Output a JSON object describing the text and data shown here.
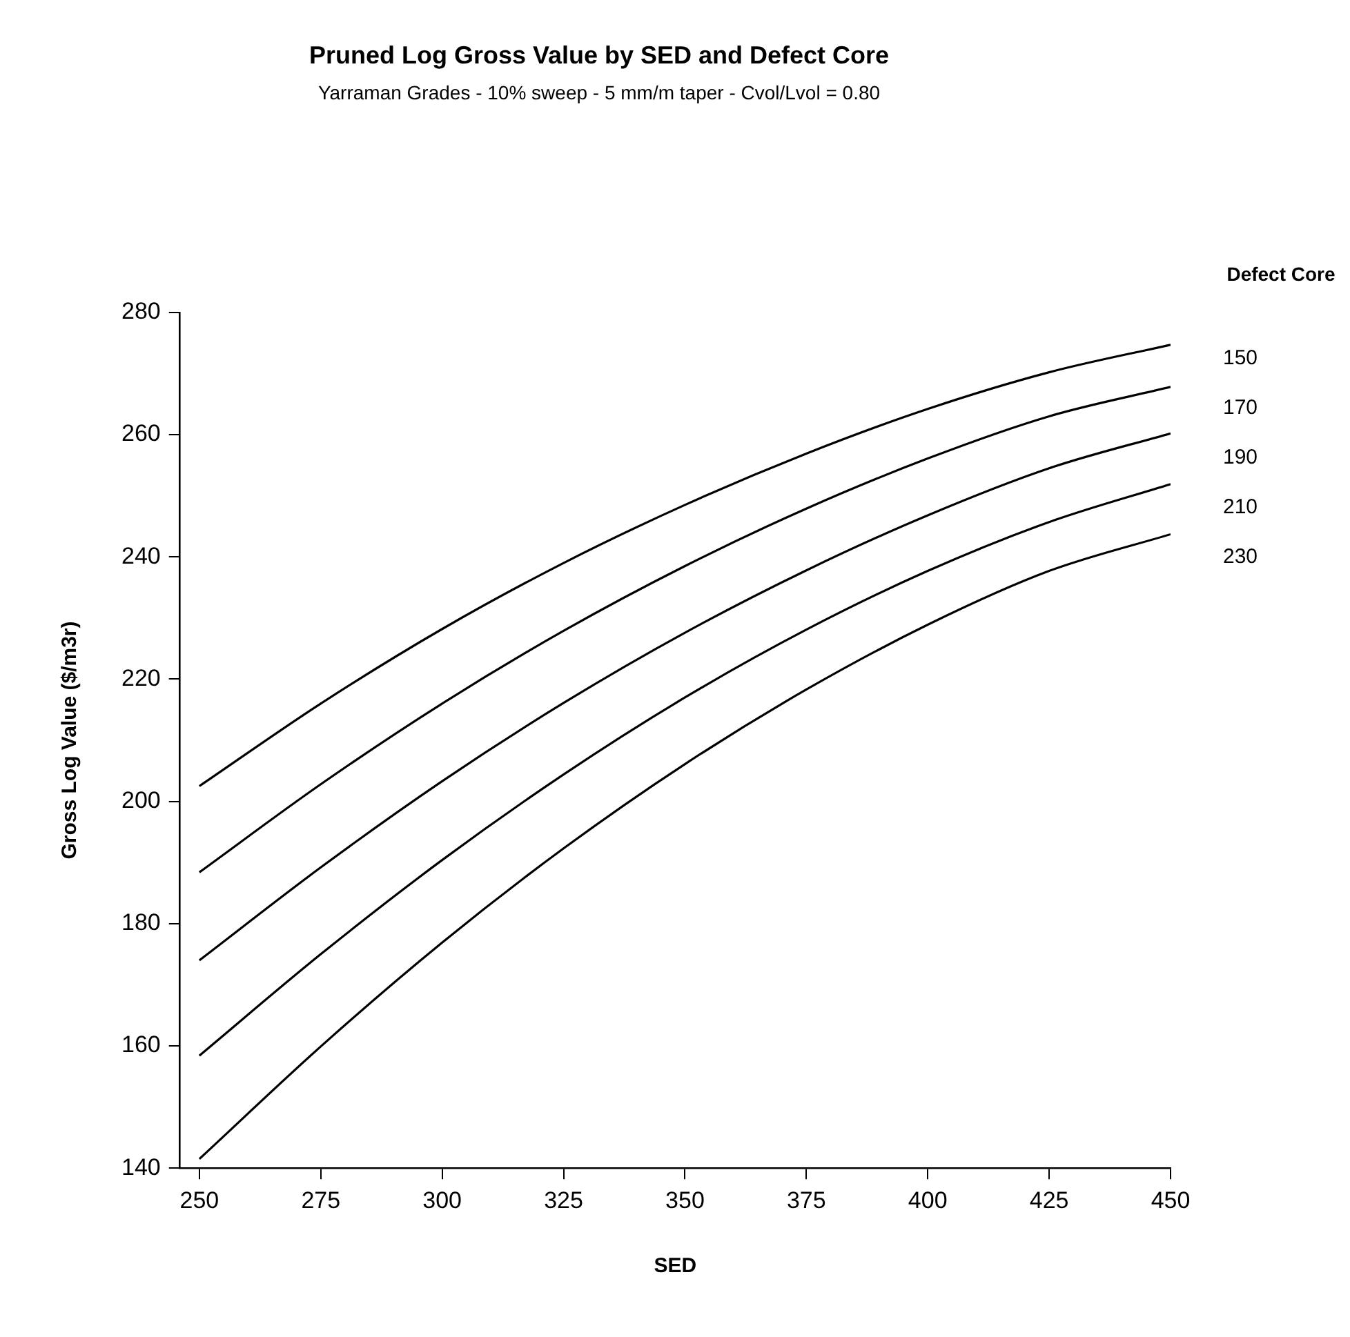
{
  "chart_data": {
    "type": "line",
    "title": "Pruned Log Gross Value by SED and Defect Core",
    "subtitle": "Yarraman Grades - 10% sweep - 5 mm/m taper - Cvol/Lvol = 0.80",
    "xlabel": "SED",
    "ylabel": "Gross Log Value ($/m3r)",
    "legend_title": "Defect Core",
    "x": [
      250,
      275,
      300,
      325,
      350,
      375,
      400,
      425,
      450
    ],
    "series": [
      {
        "name": "150",
        "color": "#000000",
        "values": [
          202.5,
          216.0,
          228.2,
          239.0,
          248.5,
          256.9,
          264.2,
          270.2,
          274.7
        ]
      },
      {
        "name": "170",
        "color": "#000000",
        "values": [
          188.4,
          202.8,
          216.0,
          227.9,
          238.5,
          247.9,
          256.1,
          263.0,
          267.8
        ]
      },
      {
        "name": "190",
        "color": "#000000",
        "values": [
          174.0,
          189.2,
          203.3,
          216.1,
          227.6,
          237.8,
          246.8,
          254.5,
          260.2
        ]
      },
      {
        "name": "210",
        "color": "#000000",
        "values": [
          158.4,
          175.0,
          190.4,
          204.4,
          217.0,
          228.1,
          237.7,
          245.7,
          251.9
        ]
      },
      {
        "name": "230",
        "color": "#000000",
        "values": [
          141.5,
          159.9,
          176.9,
          192.3,
          206.1,
          218.3,
          228.9,
          237.7,
          243.7
        ]
      }
    ],
    "xlim": [
      246,
      450
    ],
    "xticks": [
      250,
      275,
      300,
      325,
      350,
      375,
      400,
      425,
      450
    ],
    "ylim": [
      140,
      280
    ],
    "yticks": [
      140,
      160,
      180,
      200,
      220,
      240,
      260,
      280
    ],
    "grid": false,
    "legend": "right",
    "marker": "none",
    "line_style": "solid"
  }
}
